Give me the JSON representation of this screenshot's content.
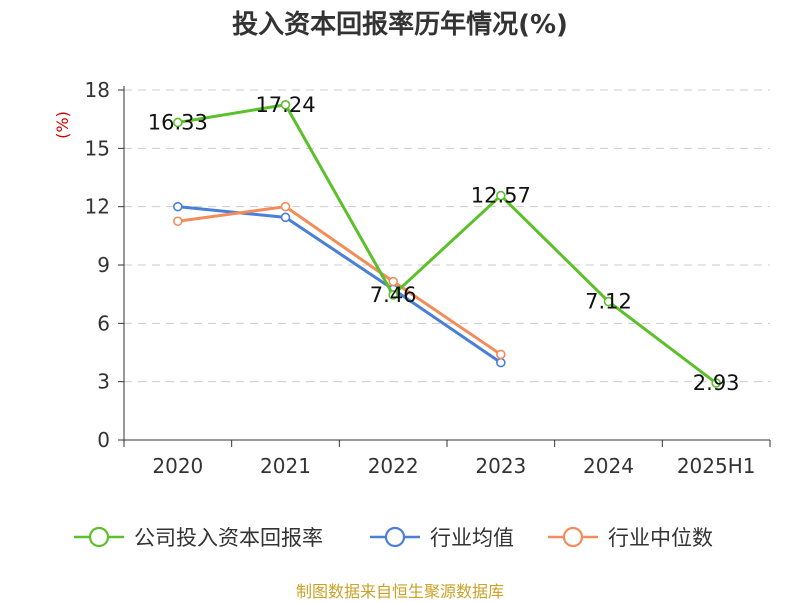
{
  "chart_data": {
    "type": "line",
    "title": "投入资本回报率历年情况(%)",
    "ylabel": "(%)",
    "xlabel": "",
    "categories": [
      "2020",
      "2021",
      "2022",
      "2023",
      "2024",
      "2025H1"
    ],
    "ylim": [
      0,
      18
    ],
    "yticks": [
      0,
      3,
      6,
      9,
      12,
      15,
      18
    ],
    "grid": true,
    "legend_position": "bottom",
    "series": [
      {
        "name": "公司投入资本回报率",
        "color": "#5cc02a",
        "values": [
          16.33,
          17.24,
          7.46,
          12.57,
          7.12,
          2.93
        ],
        "labels": [
          "16.33",
          "17.24",
          "7.46",
          "12.57",
          "7.12",
          "2.93"
        ]
      },
      {
        "name": "行业均值",
        "color": "#4a7fd8",
        "values": [
          12.0,
          11.45,
          7.75,
          3.98,
          null,
          null
        ],
        "labels": []
      },
      {
        "name": "行业中位数",
        "color": "#f28c5b",
        "values": [
          11.25,
          12.0,
          8.15,
          4.4,
          null,
          null
        ],
        "labels": []
      }
    ]
  },
  "footer": {
    "source": "制图数据来自恒生聚源数据库"
  },
  "colors": {
    "axis": "#333333",
    "grid": "#cccccc",
    "ylabel": "#cc0000",
    "source": "#c9a227"
  }
}
